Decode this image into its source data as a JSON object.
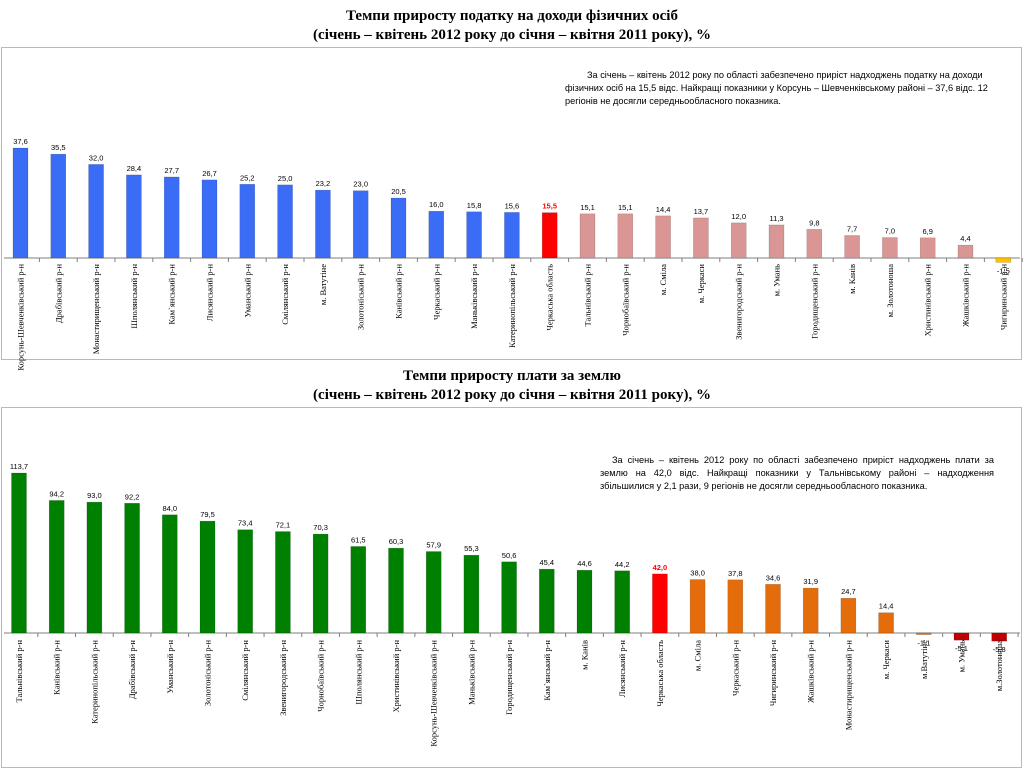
{
  "chart_data": [
    {
      "type": "bar",
      "title": "Темпи приросту податку на доходи фізичних осіб",
      "subtitle": "(січень – квітень 2012 року до січня – квітня 2011 року), %",
      "note": "За  січень –  квітень 2012 року по області забезпечено приріст надходжень податку на доходи фізичних осіб на 15,5 відс. Найкращі показники у Корсунь – Шевченківському районі – 37,6 відс. 12 регіонів не досягли середньообласного показника.",
      "categories": [
        "Корсунь-Шевченківський р-н",
        "Драбівський р-н",
        "Монастирищенський р-н",
        "Шполянський р-н",
        "Кам`янський р-н",
        "Лисянський р-н",
        "Уманський р-н",
        "Смілянський р-н",
        "м. Ватутіне",
        "Золотоніський р-н",
        "Канівський р-н",
        "Черкаський р-н",
        "Маньківський р-н",
        "Катеринопільський р-н",
        "Черкаська область",
        "Тальнівський р-н",
        "Чорнобаївський р-н",
        "м. Сміла",
        "м. Черкаси",
        "Звенигородський р-н",
        "м. Умань",
        "Городищенський р-н",
        "м. Канів",
        "м. Золотоноша",
        "Христинівський р-н",
        "Жашківський р-н",
        "Чигиринський р-н"
      ],
      "values": [
        37.6,
        35.5,
        32.0,
        28.4,
        27.7,
        26.7,
        25.2,
        25.0,
        23.2,
        23.0,
        20.5,
        16.0,
        15.8,
        15.6,
        15.5,
        15.1,
        15.1,
        14.4,
        13.7,
        12.0,
        11.3,
        9.8,
        7.7,
        7.0,
        6.9,
        4.4,
        -1.5
      ],
      "labels": [
        "37,6",
        "35,5",
        "32,0",
        "28,4",
        "27,7",
        "26,7",
        "25,2",
        "25,0",
        "23,2",
        "23,0",
        "20,5",
        "16,0",
        "15,8",
        "15,6",
        "15,5",
        "15,1",
        "15,1",
        "14,4",
        "13,7",
        "12,0",
        "11,3",
        "9,8",
        "7,7",
        "7,0",
        "6,9",
        "4,4",
        "-1,5"
      ],
      "groups": [
        "above",
        "above",
        "above",
        "above",
        "above",
        "above",
        "above",
        "above",
        "above",
        "above",
        "above",
        "above",
        "above",
        "above",
        "region",
        "below",
        "below",
        "below",
        "below",
        "below",
        "below",
        "below",
        "below",
        "below",
        "below",
        "below",
        "negative"
      ],
      "colors": {
        "above": "#3b6cf6",
        "region": "#ff0000",
        "below": "#d99694",
        "negative": "#ffc000"
      }
    },
    {
      "type": "bar",
      "title": "Темпи приросту плати за землю",
      "subtitle": "(січень – квітень 2012 року до січня – квітня 2011 року), %",
      "note": "За січень – квітень 2012 року по області забезпечено приріст надходжень плати за землю на 42,0 відс.  Найкращі показники у Тальнівському районі – надходження збільшилися у 2,1 рази, 9 регіонів не досягли середньообласного показника.",
      "categories": [
        "Тальнівський р-н",
        "Канівський р-н",
        "Катеринопільський р-н",
        "Драбівський р-н",
        "Уманський р-н",
        "Золотоніський р-н",
        "Смілянський р-н",
        "Звенигородський р-н",
        "Чорнобаївський р-н",
        "Шполянський р-н",
        "Христинівський р-н",
        "Корсунь-Шевченківський р-н",
        "Маньківський р-н",
        "Городищенський р-н",
        "Кам`янський р-н",
        "м. Канів",
        "Лисянський р-н",
        "Черкаська область",
        "м. Сміла",
        "Черкаський р-н",
        "Чигиринський р-н",
        "Жашківський р-н",
        "Монастирищенський р-н",
        "м. Черкаси",
        "м.Ватутіне",
        "м. Умань",
        "м.Золотоноша"
      ],
      "values": [
        113.7,
        94.2,
        93.0,
        92.2,
        84.0,
        79.5,
        73.4,
        72.1,
        70.3,
        61.5,
        60.3,
        57.9,
        55.3,
        50.6,
        45.4,
        44.6,
        44.2,
        42.0,
        38.0,
        37.8,
        34.6,
        31.9,
        24.7,
        14.4,
        -1.1,
        -5.1,
        -5.8
      ],
      "labels": [
        "113,7",
        "94,2",
        "93,0",
        "92,2",
        "84,0",
        "79,5",
        "73,4",
        "72,1",
        "70,3",
        "61,5",
        "60,3",
        "57,9",
        "55,3",
        "50,6",
        "45,4",
        "44,6",
        "44,2",
        "42,0",
        "38,0",
        "37,8",
        "34,6",
        "31,9",
        "24,7",
        "14,4",
        "-1,1",
        "-5,1",
        "-5,8"
      ],
      "groups": [
        "above",
        "above",
        "above",
        "above",
        "above",
        "above",
        "above",
        "above",
        "above",
        "above",
        "above",
        "above",
        "above",
        "above",
        "above",
        "above",
        "above",
        "region",
        "below",
        "below",
        "below",
        "below",
        "below",
        "below",
        "negative",
        "deep",
        "deep"
      ],
      "colors": {
        "above": "#008000",
        "region": "#ff0000",
        "below": "#e46c0a",
        "negative": "#e46c0a",
        "deep": "#c00000"
      }
    }
  ]
}
